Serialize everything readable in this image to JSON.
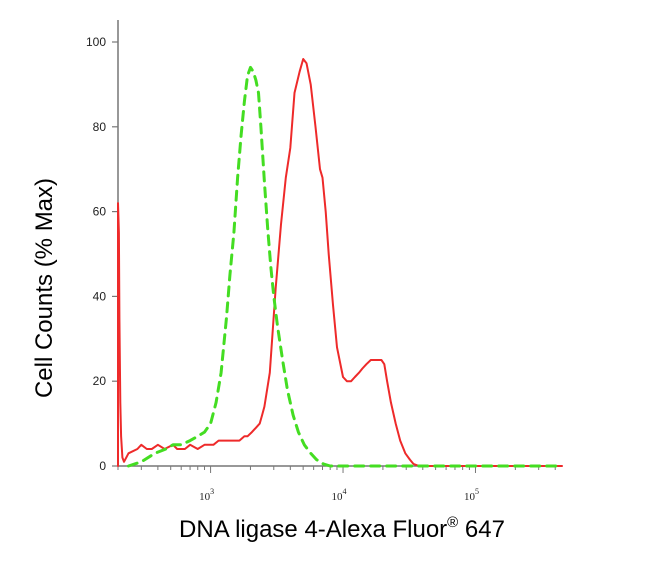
{
  "chart_data": {
    "type": "line",
    "xlabel": "DNA ligase 4-Alexa Fluor",
    "xlabel_mark": "®",
    "xlabel_suffix": " 647",
    "ylabel": "Cell Counts (% Max)",
    "xscale": "log",
    "xlim": [
      200,
      450000
    ],
    "ylim": [
      0,
      100
    ],
    "yticks": [
      0,
      20,
      40,
      60,
      80,
      100
    ],
    "ytick_labels": [
      "0",
      "20",
      "40",
      "60",
      "80",
      "100"
    ],
    "xticks": [
      1000,
      10000,
      100000
    ],
    "xtick_labels": [
      {
        "base": "10",
        "exp": "3"
      },
      {
        "base": "10",
        "exp": "4"
      },
      {
        "base": "10",
        "exp": "5"
      }
    ],
    "grid": false,
    "series": [
      {
        "color": "#ee2a2a",
        "style": "solid",
        "x": [
          200,
          200,
          203,
          205,
          208,
          211,
          216,
          222,
          240,
          280,
          300,
          330,
          360,
          400,
          450,
          520,
          560,
          640,
          700,
          800,
          900,
          1000,
          1050,
          1150,
          1250,
          1380,
          1500,
          1650,
          1800,
          1900,
          2050,
          2200,
          2350,
          2450,
          2550,
          2800,
          3100,
          3400,
          3700,
          4000,
          4300,
          4700,
          5000,
          5300,
          5700,
          6200,
          6700,
          7000,
          7400,
          7800,
          8400,
          9000,
          10000,
          10700,
          11500,
          12300,
          13200,
          14000,
          15000,
          16200,
          17500,
          18700,
          19500,
          20500,
          21500,
          23000,
          25000,
          27000,
          29500,
          32000,
          34000,
          36000,
          38500,
          42000,
          50000,
          80000,
          150000,
          300000,
          450000
        ],
        "y": [
          0,
          62,
          55,
          35,
          15,
          7,
          2,
          1,
          3,
          4,
          5,
          4,
          4,
          5,
          4,
          5,
          4,
          4,
          5,
          4,
          5,
          5,
          5,
          6,
          6,
          6,
          6,
          6,
          7,
          7,
          8,
          9,
          10,
          12,
          14,
          22,
          42,
          57,
          68,
          75,
          88,
          93,
          96,
          95,
          90,
          80,
          70,
          68,
          60,
          50,
          38,
          28,
          21,
          20,
          20,
          21,
          22,
          23,
          24,
          25,
          25,
          25,
          25,
          24,
          20,
          15,
          10,
          6,
          3,
          1.5,
          0.5,
          0.2,
          0,
          0,
          0,
          0,
          0,
          0,
          0
        ]
      },
      {
        "color": "#44dd22",
        "style": "dashed",
        "x": [
          240,
          300,
          380,
          460,
          520,
          600,
          700,
          800,
          900,
          1000,
          1100,
          1200,
          1320,
          1400,
          1500,
          1600,
          1700,
          1800,
          1900,
          2000,
          2100,
          2200,
          2300,
          2400,
          2550,
          2700,
          2850,
          3000,
          3200,
          3500,
          3800,
          4200,
          4600,
          5100,
          5700,
          6300,
          7100,
          8000,
          9000,
          10000,
          20000,
          60000,
          200000,
          450000
        ],
        "y": [
          0,
          1,
          3,
          4,
          5,
          5,
          6,
          7,
          8,
          10,
          15,
          22,
          35,
          45,
          55,
          68,
          78,
          86,
          92,
          94,
          93,
          91,
          88,
          80,
          67,
          56,
          47,
          40,
          33,
          25,
          18,
          12,
          8,
          5,
          3,
          1.5,
          0.5,
          0,
          0,
          0,
          0,
          0,
          0,
          0
        ]
      }
    ]
  }
}
